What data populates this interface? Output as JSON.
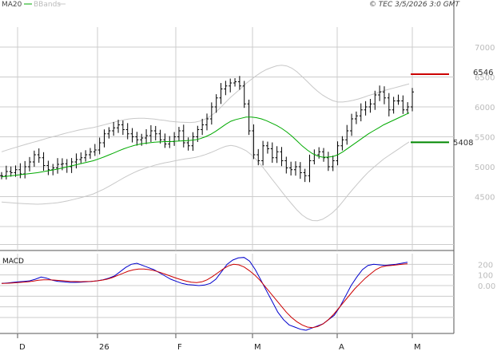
{
  "header": {
    "legend": [
      {
        "label": "MA20",
        "color": "#00aa00"
      },
      {
        "label": "BBands",
        "color": "#c8c8c8"
      }
    ],
    "copyright": "© TEC 3/5/2026 3:0 GMT"
  },
  "colors": {
    "price": "#000000",
    "ma20": "#00aa00",
    "bbands": "#c8c8c8",
    "macd": "#0000cc",
    "signal": "#cc0000",
    "resistance": "#cc0000",
    "support": "#008800",
    "grid": "#cccccc"
  },
  "chart_data": [
    {
      "type": "line",
      "panel": "price",
      "y_ticks": [
        "7000",
        "6500",
        "6000",
        "5500",
        "5000",
        "4500"
      ],
      "ylim": [
        3600,
        7600
      ],
      "x_labels": [
        "D",
        "26",
        "F",
        "M",
        "A",
        "M"
      ],
      "resistance_level": {
        "value": 6546,
        "label": "6546"
      },
      "support_level": {
        "value": 5408,
        "label": "5408"
      },
      "grid": true,
      "series": [
        {
          "name": "MA20",
          "values": [
            4830,
            4840,
            4850,
            4860,
            4870,
            4880,
            4890,
            4900,
            4915,
            4930,
            4945,
            4960,
            4980,
            5000,
            5020,
            5040,
            5060,
            5080,
            5100,
            5130,
            5160,
            5195,
            5230,
            5265,
            5300,
            5330,
            5355,
            5375,
            5390,
            5400,
            5410,
            5415,
            5420,
            5420,
            5425,
            5430,
            5435,
            5440,
            5450,
            5470,
            5500,
            5540,
            5590,
            5650,
            5710,
            5760,
            5790,
            5810,
            5830,
            5830,
            5820,
            5800,
            5770,
            5730,
            5690,
            5640,
            5580,
            5510,
            5430,
            5350,
            5280,
            5220,
            5180,
            5160,
            5160,
            5170,
            5200,
            5250,
            5310,
            5370,
            5430,
            5490,
            5550,
            5600,
            5650,
            5700,
            5740,
            5780,
            5820,
            5860,
            5900
          ]
        }
      ],
      "price_closes": [
        4850,
        4920,
        4900,
        4950,
        4880,
        5000,
        5080,
        5200,
        5150,
        5020,
        4950,
        4980,
        5040,
        5050,
        5000,
        5080,
        5120,
        5150,
        5200,
        5250,
        5280,
        5400,
        5550,
        5600,
        5650,
        5700,
        5620,
        5550,
        5500,
        5450,
        5480,
        5520,
        5600,
        5550,
        5450,
        5380,
        5420,
        5500,
        5600,
        5400,
        5350,
        5500,
        5620,
        5700,
        5800,
        6000,
        6150,
        6300,
        6350,
        6400,
        6420,
        6350,
        6050,
        5600,
        5200,
        5100,
        5350,
        5300,
        5150,
        5250,
        5100,
        4980,
        4950,
        5000,
        4900,
        4850,
        5100,
        5200,
        5250,
        5150,
        5000,
        5100,
        5350,
        5450,
        5600,
        5800,
        5850,
        5950,
        6000,
        6050,
        6200,
        6250,
        6150,
        5950,
        6100,
        6100,
        5950,
        6000,
        6250
      ]
    },
    {
      "type": "line",
      "panel": "macd",
      "title": "MACD",
      "y_ticks": [
        "200",
        "100",
        "0.00"
      ],
      "ylim": [
        -450,
        300
      ],
      "grid": true,
      "series": [
        {
          "name": "MACD",
          "values": [
            20,
            25,
            30,
            35,
            40,
            45,
            60,
            80,
            70,
            50,
            40,
            35,
            30,
            30,
            32,
            35,
            40,
            45,
            55,
            70,
            90,
            130,
            170,
            200,
            210,
            190,
            170,
            150,
            120,
            90,
            60,
            40,
            20,
            10,
            5,
            0,
            5,
            20,
            60,
            130,
            200,
            240,
            260,
            265,
            230,
            150,
            50,
            -50,
            -150,
            -250,
            -320,
            -370,
            -390,
            -410,
            -420,
            -400,
            -380,
            -360,
            -320,
            -280,
            -200,
            -100,
            0,
            80,
            150,
            190,
            200,
            195,
            190,
            195,
            200,
            210,
            220
          ]
        },
        {
          "name": "Signal",
          "values": [
            20,
            22,
            25,
            28,
            32,
            36,
            42,
            50,
            55,
            55,
            52,
            48,
            44,
            40,
            38,
            37,
            38,
            40,
            44,
            50,
            60,
            75,
            95,
            115,
            135,
            148,
            155,
            155,
            150,
            140,
            125,
            108,
            90,
            72,
            56,
            42,
            32,
            28,
            35,
            55,
            85,
            120,
            155,
            185,
            200,
            195,
            175,
            140,
            100,
            50,
            -10,
            -70,
            -130,
            -190,
            -250,
            -300,
            -340,
            -370,
            -390,
            -395,
            -385,
            -360,
            -320,
            -270,
            -210,
            -150,
            -90,
            -30,
            20,
            70,
            110,
            150,
            175,
            185,
            190,
            195,
            200,
            205
          ]
        }
      ]
    }
  ]
}
